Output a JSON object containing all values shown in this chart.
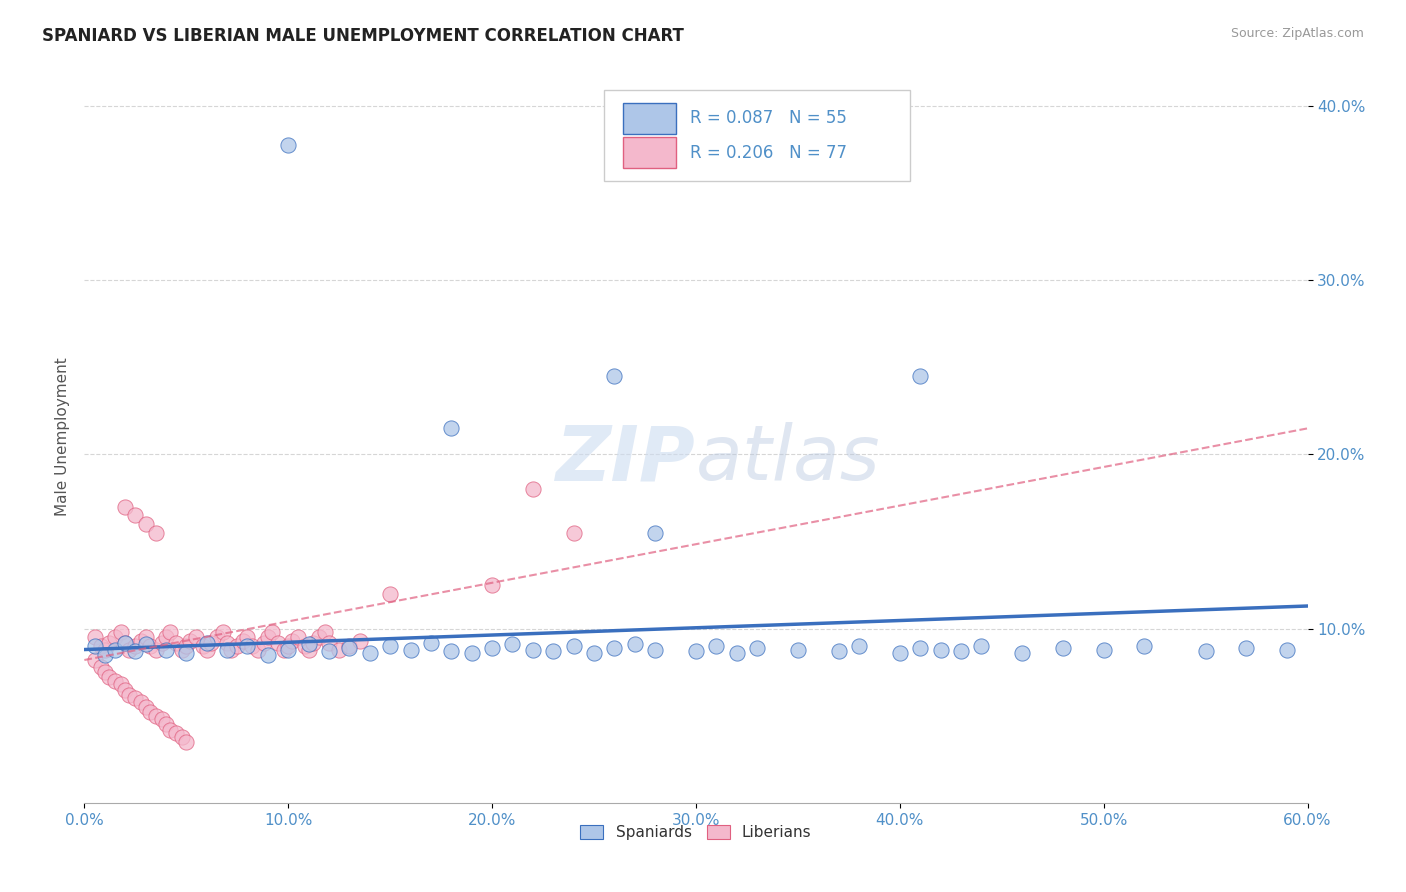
{
  "title": "SPANIARD VS LIBERIAN MALE UNEMPLOYMENT CORRELATION CHART",
  "source": "Source: ZipAtlas.com",
  "ylabel": "Male Unemployment",
  "legend_spaniards": "Spaniards",
  "legend_liberians": "Liberians",
  "r_spaniards": "R = 0.087",
  "n_spaniards": "N = 55",
  "r_liberians": "R = 0.206",
  "n_liberians": "N = 77",
  "color_spaniards": "#aec6e8",
  "color_liberians": "#f4b8cc",
  "color_spaniards_line": "#3a6fbe",
  "color_liberians_line": "#e06080",
  "xlim": [
    0.0,
    0.6
  ],
  "ylim": [
    0.0,
    0.42
  ],
  "yticks": [
    0.1,
    0.2,
    0.3,
    0.4
  ],
  "ytick_labels": [
    "10.0%",
    "20.0%",
    "30.0%",
    "40.0%"
  ],
  "watermark_zip": "ZIP",
  "watermark_atlas": "atlas",
  "background_color": "#ffffff",
  "grid_color": "#cccccc",
  "tick_color": "#5090c8",
  "spaniards_x": [
    0.005,
    0.01,
    0.015,
    0.02,
    0.025,
    0.03,
    0.04,
    0.05,
    0.06,
    0.07,
    0.08,
    0.09,
    0.1,
    0.11,
    0.12,
    0.13,
    0.14,
    0.15,
    0.16,
    0.17,
    0.18,
    0.19,
    0.2,
    0.21,
    0.22,
    0.23,
    0.24,
    0.25,
    0.26,
    0.27,
    0.28,
    0.3,
    0.31,
    0.32,
    0.33,
    0.35,
    0.37,
    0.38,
    0.4,
    0.41,
    0.42,
    0.43,
    0.44,
    0.46,
    0.48,
    0.5,
    0.52,
    0.55,
    0.57,
    0.59,
    0.18,
    0.26,
    0.41,
    0.28,
    0.1
  ],
  "spaniards_y": [
    0.09,
    0.085,
    0.088,
    0.092,
    0.087,
    0.091,
    0.088,
    0.086,
    0.092,
    0.088,
    0.09,
    0.085,
    0.088,
    0.091,
    0.087,
    0.089,
    0.086,
    0.09,
    0.088,
    0.092,
    0.087,
    0.086,
    0.089,
    0.091,
    0.088,
    0.087,
    0.09,
    0.086,
    0.089,
    0.091,
    0.088,
    0.087,
    0.09,
    0.086,
    0.089,
    0.088,
    0.087,
    0.09,
    0.086,
    0.089,
    0.088,
    0.087,
    0.09,
    0.086,
    0.089,
    0.088,
    0.09,
    0.087,
    0.089,
    0.088,
    0.215,
    0.245,
    0.245,
    0.155,
    0.378
  ],
  "liberians_x": [
    0.005,
    0.008,
    0.01,
    0.012,
    0.015,
    0.018,
    0.02,
    0.022,
    0.025,
    0.028,
    0.03,
    0.032,
    0.035,
    0.038,
    0.04,
    0.042,
    0.045,
    0.048,
    0.05,
    0.052,
    0.055,
    0.058,
    0.06,
    0.062,
    0.065,
    0.068,
    0.07,
    0.072,
    0.075,
    0.078,
    0.08,
    0.082,
    0.085,
    0.088,
    0.09,
    0.092,
    0.095,
    0.098,
    0.1,
    0.102,
    0.105,
    0.108,
    0.11,
    0.112,
    0.115,
    0.118,
    0.12,
    0.125,
    0.13,
    0.135,
    0.005,
    0.008,
    0.01,
    0.012,
    0.015,
    0.018,
    0.02,
    0.022,
    0.025,
    0.028,
    0.03,
    0.032,
    0.035,
    0.038,
    0.04,
    0.042,
    0.045,
    0.048,
    0.05,
    0.15,
    0.2,
    0.22,
    0.24,
    0.02,
    0.025,
    0.03,
    0.035
  ],
  "liberians_y": [
    0.095,
    0.09,
    0.088,
    0.092,
    0.095,
    0.098,
    0.092,
    0.088,
    0.09,
    0.093,
    0.095,
    0.09,
    0.088,
    0.092,
    0.095,
    0.098,
    0.092,
    0.088,
    0.09,
    0.093,
    0.095,
    0.09,
    0.088,
    0.092,
    0.095,
    0.098,
    0.092,
    0.088,
    0.09,
    0.093,
    0.095,
    0.09,
    0.088,
    0.092,
    0.095,
    0.098,
    0.092,
    0.088,
    0.09,
    0.093,
    0.095,
    0.09,
    0.088,
    0.092,
    0.095,
    0.098,
    0.092,
    0.088,
    0.09,
    0.093,
    0.082,
    0.078,
    0.075,
    0.072,
    0.07,
    0.068,
    0.065,
    0.062,
    0.06,
    0.058,
    0.055,
    0.052,
    0.05,
    0.048,
    0.045,
    0.042,
    0.04,
    0.038,
    0.035,
    0.12,
    0.125,
    0.18,
    0.155,
    0.17,
    0.165,
    0.16,
    0.155
  ],
  "spaniards_line_x": [
    0.0,
    0.6
  ],
  "spaniards_line_y": [
    0.088,
    0.113
  ],
  "liberians_line_x": [
    0.0,
    0.6
  ],
  "liberians_line_y": [
    0.082,
    0.215
  ]
}
